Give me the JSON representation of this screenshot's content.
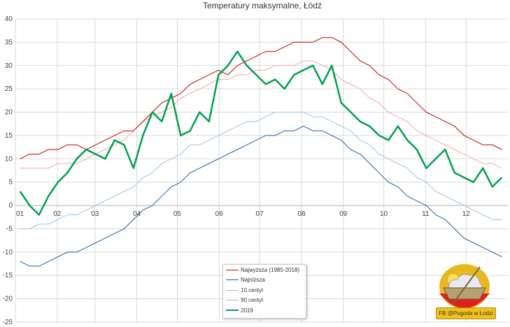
{
  "chart_data": {
    "type": "line",
    "title": "Temperatury maksymalne, Łódź",
    "xlabel": "",
    "ylabel": "",
    "ylim": [
      -25,
      40
    ],
    "yticks": [
      "40",
      "35",
      "30",
      "25",
      "20",
      "15",
      "10",
      "5",
      "0",
      "-5",
      "-10",
      "-15",
      "-20",
      "-25"
    ],
    "xticks": [
      "01",
      "02",
      "03",
      "04",
      "05",
      "06",
      "07",
      "08",
      "09",
      "10",
      "11",
      "12"
    ],
    "x_unit": "week of year",
    "grid": true,
    "legend_position": "bottom-center",
    "series": [
      {
        "name": "Najwyższa (1985-2018)",
        "color": "#c00000",
        "width": 1,
        "values": [
          10,
          11,
          11,
          12,
          12,
          13,
          13,
          12,
          13,
          14,
          15,
          16,
          16,
          18,
          20,
          22,
          23,
          24,
          26,
          27,
          28,
          29,
          28,
          30,
          31,
          32,
          33,
          33,
          34,
          35,
          35,
          35,
          36,
          36,
          35,
          33,
          31,
          30,
          28,
          27,
          25,
          24,
          22,
          20,
          19,
          18,
          17,
          15,
          14,
          13,
          13,
          12
        ]
      },
      {
        "name": "Najniższa",
        "color": "#1f5f9f",
        "width": 1,
        "values": [
          -12,
          -13,
          -13,
          -12,
          -11,
          -10,
          -10,
          -9,
          -8,
          -7,
          -6,
          -5,
          -3,
          -1,
          0,
          2,
          4,
          5,
          7,
          8,
          9,
          10,
          11,
          12,
          13,
          14,
          15,
          15,
          16,
          16,
          17,
          16,
          16,
          15,
          14,
          12,
          11,
          9,
          7,
          5,
          4,
          2,
          1,
          0,
          -2,
          -3,
          -5,
          -7,
          -8,
          -9,
          -10,
          -11
        ]
      },
      {
        "name": "10 centyl",
        "color": "#9dc3e6",
        "width": 1,
        "values": [
          -5,
          -5,
          -4,
          -4,
          -3,
          -2,
          -2,
          -1,
          0,
          1,
          2,
          3,
          4,
          6,
          7,
          9,
          10,
          11,
          13,
          13,
          14,
          15,
          16,
          17,
          18,
          18,
          19,
          20,
          20,
          20,
          20,
          19,
          19,
          18,
          17,
          16,
          14,
          13,
          11,
          10,
          9,
          8,
          6,
          5,
          3,
          2,
          1,
          0,
          -1,
          -2,
          -3,
          -3
        ]
      },
      {
        "name": "90 centyl",
        "color": "#f4a6a6",
        "width": 1,
        "values": [
          8,
          8,
          8,
          8,
          9,
          9,
          9,
          10,
          11,
          12,
          13,
          14,
          16,
          18,
          19,
          20,
          21,
          23,
          24,
          25,
          26,
          27,
          27,
          28,
          28,
          29,
          29,
          30,
          30,
          30,
          31,
          31,
          30,
          29,
          27,
          26,
          25,
          23,
          22,
          20,
          19,
          18,
          16,
          15,
          14,
          13,
          12,
          11,
          10,
          9,
          9,
          8
        ]
      },
      {
        "name": "2019",
        "color": "#00a050",
        "width": 2.5,
        "values": [
          3,
          0,
          -2,
          2,
          5,
          7,
          10,
          12,
          11,
          10,
          14,
          13,
          8,
          15,
          20,
          18,
          24,
          15,
          16,
          20,
          18,
          28,
          30,
          33,
          30,
          28,
          26,
          27,
          25,
          28,
          29,
          30,
          26,
          30,
          22,
          20,
          18,
          17,
          15,
          14,
          17,
          14,
          12,
          8,
          10,
          12,
          7,
          6,
          5,
          8,
          4,
          6
        ]
      }
    ]
  },
  "watermark": {
    "label": "FB @Pogoda w Łodzi"
  }
}
